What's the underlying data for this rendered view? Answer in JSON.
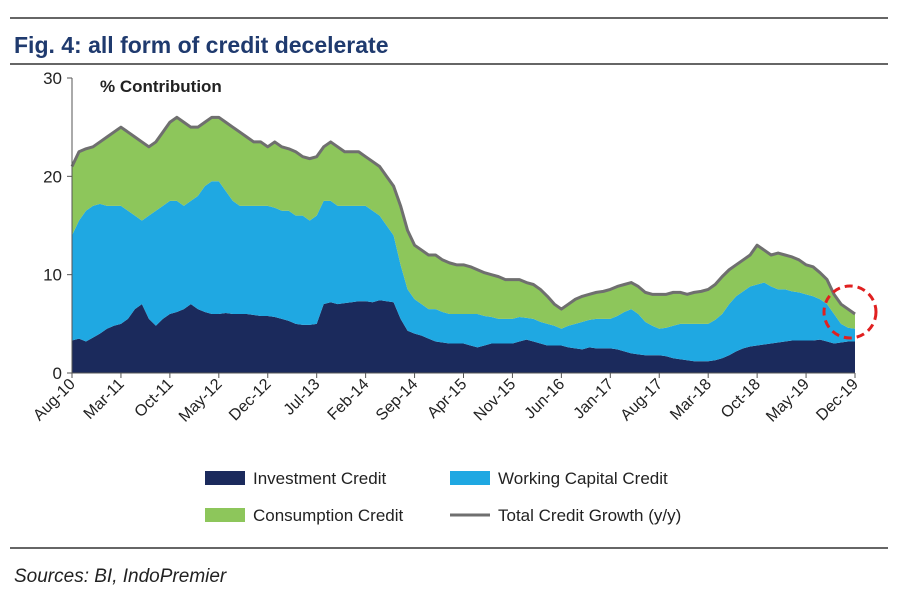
{
  "chart_data": {
    "type": "area",
    "stacked": true,
    "title": "Fig. 4: all form of credit decelerate",
    "y_annotation": "% Contribution",
    "source": "Sources: BI, IndoPremier",
    "categories": [
      "Aug-10",
      null,
      null,
      null,
      null,
      null,
      null,
      "Mar-11",
      null,
      null,
      null,
      null,
      null,
      null,
      "Oct-11",
      null,
      null,
      null,
      null,
      null,
      null,
      "May-12",
      null,
      null,
      null,
      null,
      null,
      null,
      "Dec-12",
      null,
      null,
      null,
      null,
      null,
      null,
      "Jul-13",
      null,
      null,
      null,
      null,
      null,
      null,
      "Feb-14",
      null,
      null,
      null,
      null,
      null,
      null,
      "Sep-14",
      null,
      null,
      null,
      null,
      null,
      null,
      "Apr-15",
      null,
      null,
      null,
      null,
      null,
      null,
      "Nov-15",
      null,
      null,
      null,
      null,
      null,
      null,
      "Jun-16",
      null,
      null,
      null,
      null,
      null,
      null,
      "Jan-17",
      null,
      null,
      null,
      null,
      null,
      null,
      "Aug-17",
      null,
      null,
      null,
      null,
      null,
      null,
      "Mar-18",
      null,
      null,
      null,
      null,
      null,
      null,
      "Oct-18",
      null,
      null,
      null,
      null,
      null,
      null,
      "May-19",
      null,
      null,
      null,
      null,
      null,
      null,
      "Dec-19"
    ],
    "ylim": [
      0,
      30
    ],
    "yticks": [
      0,
      10,
      20,
      30
    ],
    "series": [
      {
        "name": "Investment Credit",
        "color": "#1b2a5c",
        "type": "area",
        "values": [
          3.3,
          3.5,
          3.2,
          3.6,
          4.0,
          4.5,
          4.8,
          5.0,
          5.5,
          6.5,
          7.0,
          5.5,
          4.8,
          5.5,
          6.0,
          6.2,
          6.5,
          7.0,
          6.5,
          6.2,
          6.0,
          6.0,
          6.1,
          6.0,
          6.0,
          6.0,
          5.9,
          5.8,
          5.8,
          5.7,
          5.5,
          5.3,
          5.0,
          4.9,
          4.9,
          5.0,
          7.0,
          7.2,
          7.0,
          7.1,
          7.2,
          7.3,
          7.3,
          7.2,
          7.4,
          7.3,
          7.2,
          5.5,
          4.3,
          4.0,
          3.8,
          3.5,
          3.2,
          3.1,
          3.0,
          3.0,
          3.0,
          2.8,
          2.6,
          2.8,
          3.0,
          3.0,
          3.0,
          3.0,
          3.2,
          3.4,
          3.2,
          3.0,
          2.8,
          2.8,
          2.8,
          2.6,
          2.5,
          2.4,
          2.6,
          2.5,
          2.5,
          2.5,
          2.4,
          2.2,
          2.0,
          1.9,
          1.8,
          1.8,
          1.8,
          1.7,
          1.5,
          1.4,
          1.3,
          1.2,
          1.2,
          1.2,
          1.3,
          1.5,
          1.8,
          2.2,
          2.5,
          2.7,
          2.8,
          2.9,
          3.0,
          3.1,
          3.2,
          3.3,
          3.3,
          3.3,
          3.3,
          3.4,
          3.2,
          3.0,
          3.1,
          3.2,
          3.2
        ]
      },
      {
        "name": "Working Capital Credit",
        "color": "#1fa8e2",
        "type": "area",
        "values": [
          10.7,
          12,
          13.3,
          13.4,
          13.2,
          12.5,
          12.2,
          12,
          11,
          9.5,
          8.5,
          10.5,
          11.7,
          11.5,
          11.5,
          11.3,
          10.5,
          10.5,
          11.5,
          12.8,
          13.5,
          13.5,
          12.4,
          11.5,
          11,
          11,
          11.1,
          11.2,
          11.2,
          11.1,
          11,
          11.2,
          11,
          11.1,
          10.6,
          11,
          10.5,
          10.3,
          10,
          9.9,
          9.8,
          9.7,
          9.7,
          9.3,
          8.6,
          7.7,
          6.8,
          5.5,
          4.2,
          3.5,
          3.2,
          3,
          3.3,
          3.1,
          3,
          3,
          3,
          3.2,
          3.4,
          3,
          2.7,
          2.5,
          2.5,
          2.5,
          2.5,
          2.2,
          2.3,
          2.2,
          2.2,
          2,
          1.7,
          2.2,
          2.5,
          2.8,
          2.8,
          3,
          3,
          3,
          3.4,
          4,
          4.5,
          4.1,
          3.4,
          3,
          2.7,
          2.9,
          3.3,
          3.6,
          3.7,
          3.8,
          3.8,
          3.8,
          4.1,
          4.5,
          5.2,
          5.6,
          5.8,
          6.1,
          6.2,
          6.3,
          5.8,
          5.4,
          5.3,
          5,
          4.9,
          4.7,
          4.5,
          4.1,
          3.8,
          3,
          1.9,
          1.4,
          1.3
        ]
      },
      {
        "name": "Consumption Credit",
        "color": "#8dc65b",
        "type": "area",
        "values": [
          7,
          7,
          6.3,
          6,
          6.3,
          7,
          7.5,
          8,
          8,
          8,
          8,
          7,
          7,
          7.5,
          8,
          8.5,
          8.5,
          7.5,
          7,
          6.5,
          6.5,
          6.5,
          7,
          7.5,
          7.5,
          7,
          6.5,
          6.5,
          6,
          6.7,
          6.5,
          6.3,
          6.5,
          6,
          6.3,
          6,
          5.5,
          6,
          6,
          5.5,
          5.5,
          5.5,
          5,
          5,
          5,
          5,
          5,
          6,
          6,
          5.5,
          5.5,
          5.5,
          5.5,
          5.3,
          5.2,
          5,
          5,
          4.8,
          4.5,
          4.4,
          4.3,
          4.3,
          4,
          4,
          3.8,
          3.6,
          3.5,
          3.3,
          2.8,
          2.2,
          2,
          2.2,
          2.5,
          2.6,
          2.6,
          2.7,
          2.8,
          3,
          3,
          2.8,
          2.7,
          2.8,
          3,
          3.2,
          3.5,
          3.4,
          3.4,
          3.2,
          3,
          3.2,
          3.3,
          3.5,
          3.6,
          3.8,
          3.5,
          3.2,
          3.2,
          3.2,
          4,
          3.3,
          3.2,
          3.7,
          3.5,
          3.5,
          3.3,
          3,
          3,
          2.7,
          2.5,
          2,
          2,
          1.9,
          1.5
        ]
      },
      {
        "name": "Total Credit Growth (y/y)",
        "color": "#6f6f6f",
        "type": "line",
        "values": [
          21,
          22.5,
          22.8,
          23,
          23.5,
          24,
          24.5,
          25,
          24.5,
          24,
          23.5,
          23,
          23.5,
          24.5,
          25.5,
          26,
          25.5,
          25,
          25,
          25.5,
          26,
          26,
          25.5,
          25,
          24.5,
          24,
          23.5,
          23.5,
          23,
          23.5,
          23,
          22.8,
          22.5,
          22,
          21.8,
          22,
          23,
          23.5,
          23,
          22.5,
          22.5,
          22.5,
          22,
          21.5,
          21,
          20,
          19,
          17,
          14.5,
          13,
          12.5,
          12,
          12,
          11.5,
          11.2,
          11,
          11,
          10.8,
          10.5,
          10.2,
          10,
          9.8,
          9.5,
          9.5,
          9.5,
          9.2,
          9,
          8.5,
          7.8,
          7,
          6.5,
          7,
          7.5,
          7.8,
          8,
          8.2,
          8.3,
          8.5,
          8.8,
          9,
          9.2,
          8.8,
          8.2,
          8,
          8,
          8,
          8.2,
          8.2,
          8,
          8.2,
          8.3,
          8.5,
          9,
          9.8,
          10.5,
          11,
          11.5,
          12,
          13,
          12.5,
          12,
          12.2,
          12,
          11.8,
          11.5,
          11,
          10.8,
          10.2,
          9.5,
          8,
          7,
          6.5,
          6
        ]
      }
    ]
  }
}
